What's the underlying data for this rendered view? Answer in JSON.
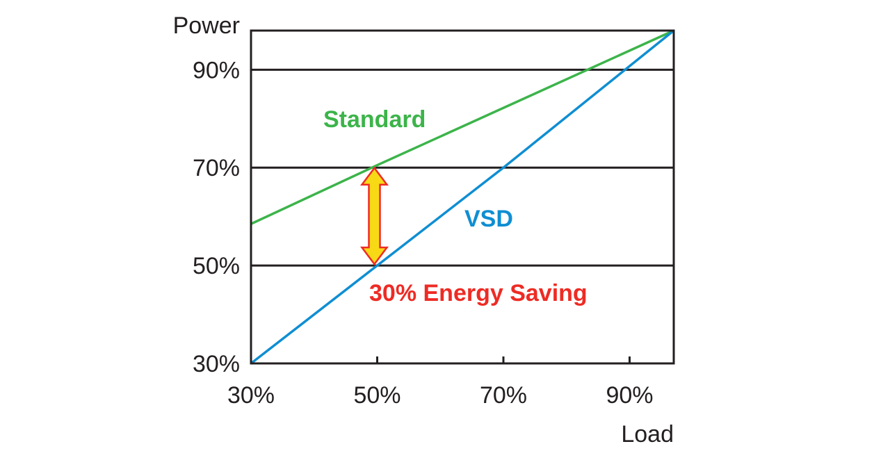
{
  "chart_data": {
    "type": "line",
    "xlabel": "Load",
    "ylabel": "Power",
    "xlim": [
      30,
      97
    ],
    "ylim": [
      30,
      98
    ],
    "x_ticks": [
      "30%",
      "50%",
      "70%",
      "90%"
    ],
    "x_tick_values": [
      30,
      50,
      70,
      90
    ],
    "y_ticks": [
      "30%",
      "50%",
      "70%",
      "90%"
    ],
    "y_tick_values": [
      30,
      50,
      70,
      90
    ],
    "grid": "horizontal lines at 50%, 70% and 90%",
    "series": [
      {
        "name": "Standard",
        "color": "#3cb44a",
        "x": [
          30,
          50,
          97
        ],
        "y": [
          58.5,
          70.5,
          98
        ]
      },
      {
        "name": "VSD",
        "color": "#0f8ed2",
        "x": [
          30,
          50,
          70,
          97
        ],
        "y": [
          30,
          50,
          70,
          98
        ]
      }
    ],
    "annotation": {
      "text": "30% Energy Saving",
      "color": "#ee2b24",
      "arrow_x": 50,
      "arrow_from": 50,
      "arrow_to": 70.5,
      "arrow_fill": "#f7d916",
      "arrow_stroke": "#ee2b24"
    }
  }
}
